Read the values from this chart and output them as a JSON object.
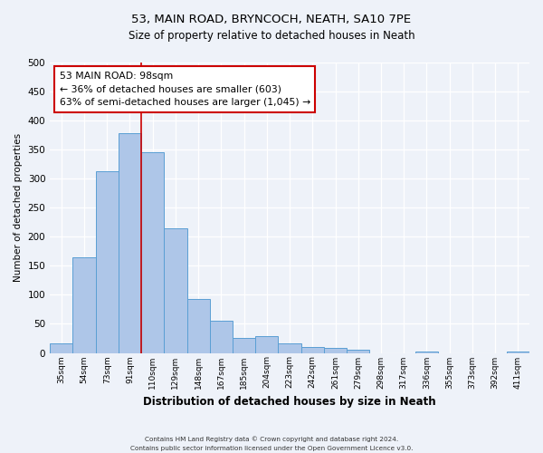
{
  "title": "53, MAIN ROAD, BRYNCOCH, NEATH, SA10 7PE",
  "subtitle": "Size of property relative to detached houses in Neath",
  "xlabel": "Distribution of detached houses by size in Neath",
  "ylabel": "Number of detached properties",
  "bar_labels": [
    "35sqm",
    "54sqm",
    "73sqm",
    "91sqm",
    "110sqm",
    "129sqm",
    "148sqm",
    "167sqm",
    "185sqm",
    "204sqm",
    "223sqm",
    "242sqm",
    "261sqm",
    "279sqm",
    "298sqm",
    "317sqm",
    "336sqm",
    "355sqm",
    "373sqm",
    "392sqm",
    "411sqm"
  ],
  "bar_values": [
    17,
    165,
    313,
    378,
    345,
    215,
    93,
    56,
    25,
    29,
    16,
    10,
    8,
    5,
    0,
    0,
    3,
    0,
    0,
    0,
    3
  ],
  "bar_color": "#aec6e8",
  "bar_edge_color": "#5a9fd4",
  "reference_line_x": 3.5,
  "reference_line_color": "#cc0000",
  "annotation_text": "53 MAIN ROAD: 98sqm\n← 36% of detached houses are smaller (603)\n63% of semi-detached houses are larger (1,045) →",
  "annotation_box_color": "#ffffff",
  "annotation_box_edge": "#cc0000",
  "ylim": [
    0,
    500
  ],
  "yticks": [
    0,
    50,
    100,
    150,
    200,
    250,
    300,
    350,
    400,
    450,
    500
  ],
  "footer_line1": "Contains HM Land Registry data © Crown copyright and database right 2024.",
  "footer_line2": "Contains public sector information licensed under the Open Government Licence v3.0.",
  "bg_color": "#eef2f9",
  "plot_bg_color": "#eef2f9",
  "grid_color": "#ffffff"
}
